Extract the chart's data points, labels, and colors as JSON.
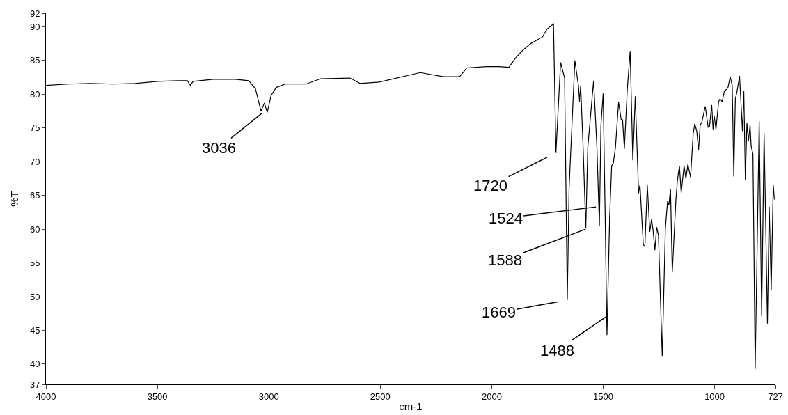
{
  "chart_data": {
    "type": "line",
    "xlabel": "cm-1",
    "ylabel": "%T",
    "color": "#000000",
    "xlim": [
      4000,
      727
    ],
    "ylim": [
      37,
      92
    ],
    "xticks": [
      4000,
      3500,
      3000,
      2500,
      2000,
      1500,
      1000,
      727
    ],
    "yticks": [
      37,
      40,
      45,
      50,
      55,
      60,
      65,
      70,
      75,
      80,
      85,
      90,
      92
    ],
    "x": [
      4000,
      3900,
      3800,
      3700,
      3600,
      3500,
      3400,
      3365,
      3352,
      3340,
      3250,
      3150,
      3090,
      3060,
      3045,
      3035,
      3020,
      3007,
      2990,
      2967,
      2927,
      2833,
      2768,
      2636,
      2591,
      2505,
      2321,
      2217,
      2144,
      2112,
      2022,
      1970,
      1923,
      1892,
      1861,
      1825,
      1772,
      1751,
      1731,
      1723,
      1712,
      1691,
      1673,
      1661,
      1653,
      1627,
      1616,
      1611,
      1606,
      1601,
      1590,
      1578,
      1569,
      1543,
      1528,
      1517,
      1510,
      1500,
      1491,
      1483,
      1471,
      1462,
      1455,
      1445,
      1431,
      1419,
      1413,
      1405,
      1392,
      1379,
      1367,
      1356,
      1341,
      1335,
      1320,
      1313,
      1302,
      1291,
      1283,
      1276,
      1268,
      1260,
      1252,
      1235,
      1221,
      1211,
      1205,
      1198,
      1190,
      1174,
      1167,
      1158,
      1150,
      1137,
      1129,
      1120,
      1108,
      1096,
      1089,
      1080,
      1072,
      1065,
      1057,
      1042,
      1029,
      1023,
      1013,
      1007,
      1002,
      994,
      982,
      976,
      966,
      956,
      947,
      940,
      930,
      921,
      914,
      907,
      900,
      888,
      875,
      869,
      862,
      855,
      848,
      841,
      836,
      828,
      818,
      800,
      789,
      778,
      763,
      755,
      746,
      737,
      732
    ],
    "values": [
      81.3,
      81.5,
      81.6,
      81.5,
      81.6,
      81.9,
      82.0,
      82.0,
      81.3,
      81.9,
      82.2,
      82.2,
      82.0,
      80.8,
      78.8,
      77.5,
      78.7,
      77.3,
      79.8,
      81.0,
      81.5,
      81.5,
      82.3,
      82.4,
      81.6,
      81.8,
      83.2,
      82.6,
      82.6,
      83.9,
      84.1,
      84.1,
      84.0,
      85.4,
      86.5,
      87.5,
      88.5,
      89.7,
      90.2,
      90.5,
      71.3,
      84.7,
      82.4,
      49.5,
      66.0,
      85.0,
      82.4,
      81.3,
      78.9,
      81.3,
      72.1,
      60.1,
      72.1,
      82.0,
      72.1,
      60.5,
      75.5,
      80.1,
      61.8,
      44.3,
      61.8,
      69.4,
      69.7,
      72.1,
      78.8,
      76.2,
      76.2,
      71.9,
      80.6,
      86.4,
      70.2,
      79.7,
      65.3,
      66.6,
      57.7,
      57.4,
      66.5,
      59.6,
      61.5,
      59.8,
      56.9,
      60.3,
      59.1,
      41.2,
      60.1,
      64.2,
      63.6,
      66.0,
      53.6,
      64.2,
      67.2,
      69.4,
      65.4,
      69.4,
      67.5,
      69.6,
      67.7,
      74.2,
      75.6,
      74.5,
      71.7,
      75.4,
      75.9,
      78.2,
      75.1,
      75.2,
      78.4,
      74.8,
      76.8,
      74.8,
      78.9,
      79.3,
      78.9,
      80.5,
      80.7,
      81.0,
      82.6,
      81.3,
      67.8,
      79.3,
      80.3,
      82.7,
      74.5,
      80.5,
      67.3,
      75.7,
      73.1,
      75.4,
      72.3,
      71.1,
      39.3,
      76.0,
      47.1,
      74.2,
      46.0,
      63.3,
      51.0,
      66.6,
      64.4
    ],
    "annotations": [
      {
        "text": "3036",
        "x": 3030,
        "y": 77.2
      },
      {
        "text": "1720",
        "x": 1712,
        "y": 71.3
      },
      {
        "text": "1524",
        "x": 1532,
        "y": 63.3
      },
      {
        "text": "1588",
        "x": 1579,
        "y": 60.0
      },
      {
        "text": "1669",
        "x": 1661,
        "y": 49.5
      },
      {
        "text": "1488",
        "x": 1488,
        "y": 47.0
      }
    ]
  }
}
